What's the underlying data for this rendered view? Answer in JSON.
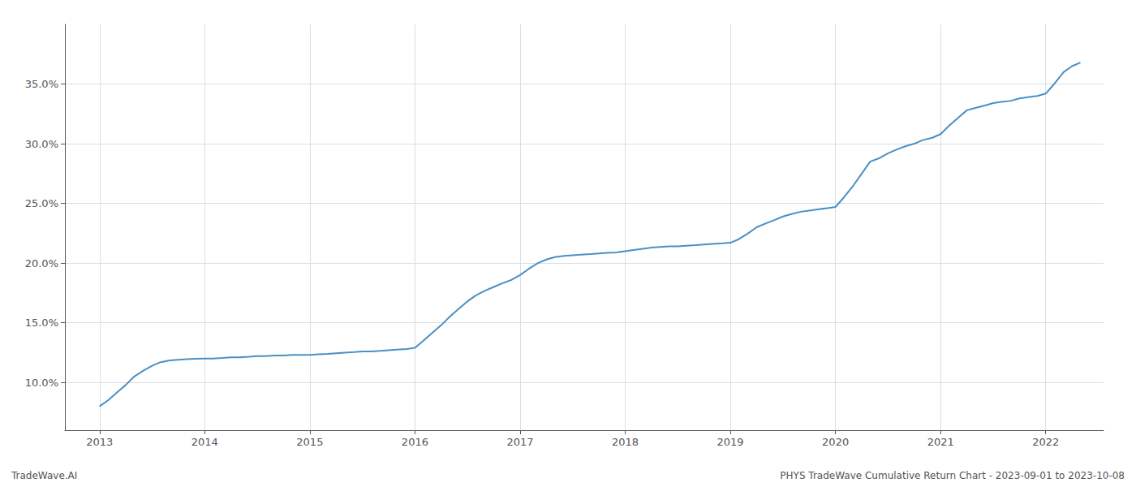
{
  "chart_data": {
    "type": "line",
    "color": "#4a90c4",
    "grid": true,
    "annotations": [
      "TradeWave.AI",
      "PHYS TradeWave Cumulative Return Chart - 2023-09-01 to 2023-10-08"
    ],
    "x": [
      2013.0,
      2013.08,
      2013.17,
      2013.25,
      2013.33,
      2013.42,
      2013.5,
      2013.58,
      2013.67,
      2013.75,
      2013.83,
      2013.92,
      2014.0,
      2014.08,
      2014.17,
      2014.25,
      2014.33,
      2014.42,
      2014.5,
      2014.58,
      2014.67,
      2014.75,
      2014.83,
      2014.92,
      2015.0,
      2015.08,
      2015.17,
      2015.25,
      2015.33,
      2015.42,
      2015.5,
      2015.58,
      2015.67,
      2015.75,
      2015.83,
      2015.92,
      2016.0,
      2016.08,
      2016.17,
      2016.25,
      2016.33,
      2016.42,
      2016.5,
      2016.58,
      2016.67,
      2016.75,
      2016.83,
      2016.92,
      2017.0,
      2017.08,
      2017.17,
      2017.25,
      2017.33,
      2017.42,
      2017.5,
      2017.58,
      2017.67,
      2017.75,
      2017.83,
      2017.92,
      2018.0,
      2018.08,
      2018.17,
      2018.25,
      2018.33,
      2018.42,
      2018.5,
      2018.58,
      2018.67,
      2018.75,
      2018.83,
      2018.92,
      2019.0,
      2019.08,
      2019.17,
      2019.25,
      2019.33,
      2019.42,
      2019.5,
      2019.58,
      2019.67,
      2019.75,
      2019.83,
      2019.92,
      2020.0,
      2020.08,
      2020.17,
      2020.25,
      2020.33,
      2020.42,
      2020.5,
      2020.58,
      2020.67,
      2020.75,
      2020.83,
      2020.92,
      2021.0,
      2021.08,
      2021.17,
      2021.25,
      2021.33,
      2021.42,
      2021.5,
      2021.58,
      2021.67,
      2021.75,
      2021.83,
      2021.92,
      2022.0,
      2022.08,
      2022.17,
      2022.25,
      2022.33
    ],
    "values": [
      8.0,
      8.5,
      9.2,
      9.8,
      10.5,
      11.0,
      11.4,
      11.7,
      11.85,
      11.9,
      11.95,
      11.98,
      12.0,
      12.0,
      12.05,
      12.1,
      12.1,
      12.15,
      12.2,
      12.2,
      12.25,
      12.25,
      12.3,
      12.3,
      12.3,
      12.35,
      12.4,
      12.45,
      12.5,
      12.55,
      12.6,
      12.6,
      12.65,
      12.7,
      12.75,
      12.8,
      12.9,
      13.5,
      14.2,
      14.8,
      15.5,
      16.2,
      16.8,
      17.3,
      17.7,
      18.0,
      18.3,
      18.6,
      19.0,
      19.5,
      20.0,
      20.3,
      20.5,
      20.6,
      20.65,
      20.7,
      20.75,
      20.8,
      20.85,
      20.9,
      21.0,
      21.1,
      21.2,
      21.3,
      21.35,
      21.4,
      21.4,
      21.45,
      21.5,
      21.55,
      21.6,
      21.65,
      21.7,
      22.0,
      22.5,
      23.0,
      23.3,
      23.6,
      23.9,
      24.1,
      24.3,
      24.4,
      24.5,
      24.6,
      24.7,
      25.5,
      26.5,
      27.5,
      28.5,
      28.8,
      29.2,
      29.5,
      29.8,
      30.0,
      30.3,
      30.5,
      30.8,
      31.5,
      32.2,
      32.8,
      33.0,
      33.2,
      33.4,
      33.5,
      33.6,
      33.8,
      33.9,
      34.0,
      34.2,
      35.0,
      36.0,
      36.5,
      36.8
    ],
    "xlim": [
      2012.67,
      2022.55
    ],
    "xticks": [
      2013,
      2014,
      2015,
      2016,
      2017,
      2018,
      2019,
      2020,
      2021,
      2022
    ],
    "ylim": [
      6.0,
      40.0
    ],
    "yticks": [
      {
        "value": 10.0,
        "label": "10.0%"
      },
      {
        "value": 15.0,
        "label": "15.0%"
      },
      {
        "value": 20.0,
        "label": "20.0%"
      },
      {
        "value": 25.0,
        "label": "25.0%"
      },
      {
        "value": 30.0,
        "label": "30.0%"
      },
      {
        "value": 35.0,
        "label": "35.0%"
      }
    ]
  }
}
